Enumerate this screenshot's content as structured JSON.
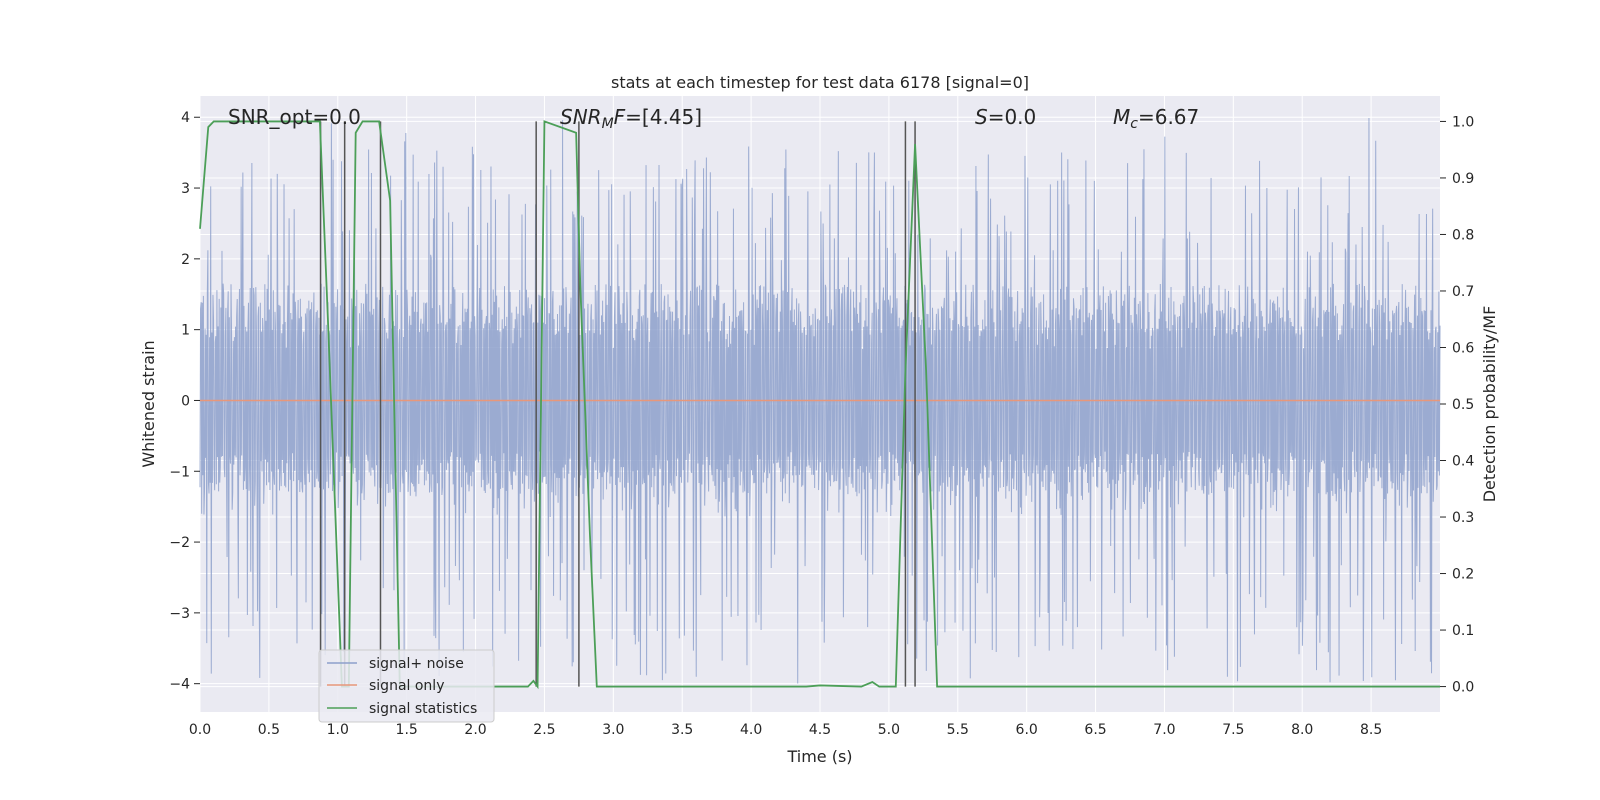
{
  "chart_data": {
    "type": "line",
    "title": "stats at each timestep for test data 6178 [signal=0]",
    "xlabel": "Time (s)",
    "ylabel": "Whitened strain",
    "y2label": "Detection probability/MF",
    "xlim": [
      0.0,
      9.0
    ],
    "ylim": [
      -4.4,
      4.3
    ],
    "y2lim": [
      -0.045,
      1.045
    ],
    "xticks": [
      "0.0",
      "0.5",
      "1.0",
      "1.5",
      "2.0",
      "2.5",
      "3.0",
      "3.5",
      "4.0",
      "4.5",
      "5.0",
      "5.5",
      "6.0",
      "6.5",
      "7.0",
      "7.5",
      "8.0",
      "8.5"
    ],
    "yticks": [
      "4",
      "3",
      "2",
      "1",
      "0",
      "−1",
      "−2",
      "−3",
      "−4"
    ],
    "y2ticks": [
      "1.0",
      "0.9",
      "0.8",
      "0.7",
      "0.6",
      "0.5",
      "0.4",
      "0.3",
      "0.2",
      "0.1",
      "0.0"
    ],
    "grid": true,
    "legend_position": "lower-left",
    "colors": {
      "noise": "#8da0cb",
      "signal_only": "#e8977a",
      "statistics": "#4c9f58",
      "markers": "#555555",
      "panel": "#eaeaf2"
    },
    "annotations": {
      "snr_opt": "SNR_opt=0.0",
      "snr_mf": "=[4.45]",
      "snr_mf_sym": "SNR",
      "snr_mf_sub": "M",
      "snr_mf_tail": "F",
      "s_sym": "S",
      "s_val": "=0.0",
      "mc_sym": "M",
      "mc_sub": "c",
      "mc_val": "=6.67"
    },
    "series": [
      {
        "name": "signal+ noise",
        "envelope_core": [
          -1.2,
          1.5
        ],
        "spike_range": [
          -4.0,
          3.6
        ],
        "duration": 9.0
      },
      {
        "name": "signal only",
        "value": 0.0
      },
      {
        "name": "signal statistics",
        "x": [
          0.0,
          0.06,
          0.1,
          0.3,
          0.87,
          0.93,
          1.03,
          1.05,
          1.08,
          1.13,
          1.18,
          1.3,
          1.38,
          1.45,
          1.5,
          2.0,
          2.38,
          2.42,
          2.45,
          2.5,
          2.73,
          2.76,
          2.83,
          2.88,
          3.0,
          4.4,
          4.5,
          4.8,
          4.88,
          4.93,
          5.05,
          5.12,
          5.19,
          5.27,
          5.35,
          6.0,
          9.0
        ],
        "y": [
          0.81,
          0.99,
          1.0,
          1.0,
          1.0,
          0.64,
          0.0,
          0.0,
          0.0,
          0.98,
          1.0,
          1.0,
          0.86,
          0.0,
          0.0,
          0.0,
          0.0,
          0.01,
          0.0,
          1.0,
          0.98,
          0.71,
          0.27,
          0.0,
          0.0,
          0.0,
          0.002,
          0.0,
          0.008,
          0.0,
          0.0,
          0.56,
          0.96,
          0.56,
          0.0,
          0.0,
          0.0
        ]
      }
    ],
    "vertical_markers_x": [
      0.875,
      1.05,
      1.31,
      2.44,
      2.75,
      5.12,
      5.19
    ]
  }
}
